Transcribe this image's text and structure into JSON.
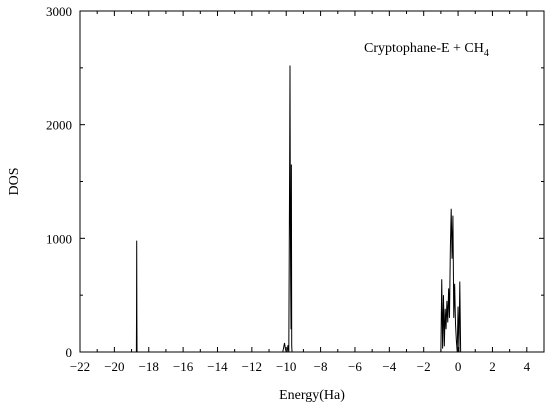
{
  "chart_data": {
    "type": "line",
    "title": "",
    "annotation": {
      "text": "Cryptophane-E + CH",
      "subscript": "4"
    },
    "xlabel": "Energy(Ha)",
    "ylabel": "DOS",
    "xlim": [
      -22,
      5
    ],
    "ylim": [
      0,
      3000
    ],
    "xticks": [
      -22,
      -20,
      -18,
      -16,
      -14,
      -12,
      -10,
      -8,
      -6,
      -4,
      -2,
      0,
      2,
      4
    ],
    "xtick_labels": [
      "−22",
      "−20",
      "−18",
      "−16",
      "−14",
      "−12",
      "−10",
      "−8",
      "−6",
      "−4",
      "−2",
      "0",
      "2",
      "4"
    ],
    "yticks": [
      0,
      1000,
      2000,
      3000
    ],
    "ytick_labels": [
      "0",
      "1000",
      "2000",
      "3000"
    ],
    "grid": false,
    "legend": "none",
    "series": [
      {
        "color": "#000000",
        "x": [
          -22,
          -18.72,
          -18.71,
          -18.7,
          -18.69,
          -18.68,
          -18.67,
          -10.2,
          -10.1,
          -10.05,
          -10.0,
          -9.95,
          -9.9,
          -9.85,
          -9.8,
          -9.78,
          -9.76,
          -9.74,
          -9.72,
          -9.7,
          -9.68,
          -9.66,
          -9.6,
          -1.0,
          -0.95,
          -0.9,
          -0.85,
          -0.8,
          -0.75,
          -0.7,
          -0.65,
          -0.6,
          -0.55,
          -0.5,
          -0.45,
          -0.4,
          -0.35,
          -0.3,
          -0.25,
          -0.2,
          -0.15,
          -0.1,
          -0.05,
          0.0,
          0.05,
          0.1,
          0.15,
          0.2,
          5
        ],
        "values": [
          0,
          0,
          350,
          980,
          300,
          0,
          0,
          0,
          80,
          30,
          0,
          0,
          60,
          0,
          1700,
          2520,
          1200,
          600,
          200,
          1650,
          50,
          0,
          0,
          0,
          640,
          30,
          500,
          50,
          380,
          200,
          450,
          260,
          560,
          300,
          900,
          1260,
          820,
          1200,
          300,
          600,
          250,
          100,
          0,
          400,
          0,
          620,
          0,
          0,
          0
        ]
      }
    ]
  }
}
